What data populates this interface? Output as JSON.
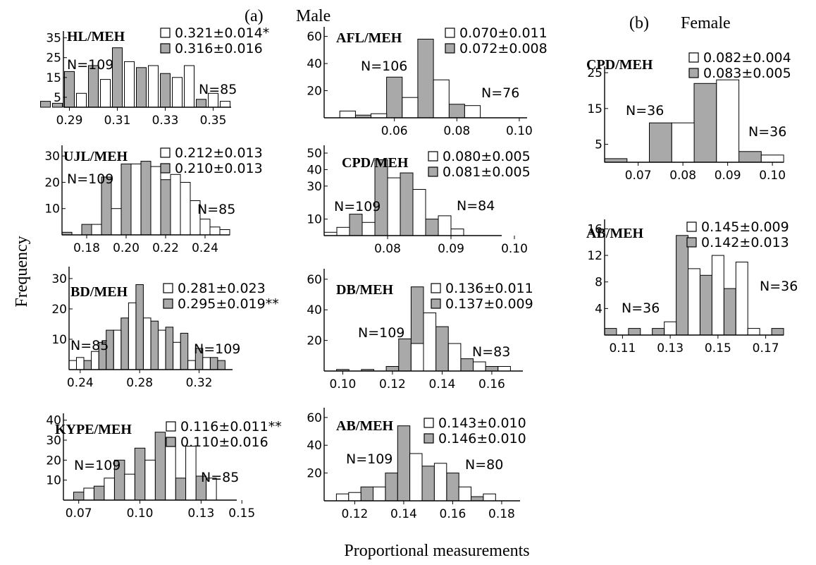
{
  "figure": {
    "header_a": "(a)",
    "header_male": "Male",
    "header_b": "(b)",
    "header_female": "Female",
    "ylabel": "Frequency",
    "xlabel": "Proportional measurements"
  },
  "colors": {
    "grey_bar": "#a9a9a9",
    "white_bar": "#ffffff",
    "edge": "#000000"
  },
  "chart_data": [
    {
      "type": "bar",
      "group": "Male",
      "title": "HL/MEH",
      "legend": [
        "0.321±0.014*",
        "0.316±0.016"
      ],
      "n_labels": [
        "N=109",
        "N=85"
      ],
      "xticks": [
        "0.29",
        "0.31",
        "0.33",
        "0.35"
      ],
      "yticks": [
        "5",
        "15",
        "25",
        "35"
      ],
      "x": [
        0.28,
        0.285,
        0.29,
        0.295,
        0.3,
        0.305,
        0.31,
        0.315,
        0.32,
        0.325,
        0.33,
        0.335,
        0.34,
        0.345,
        0.35,
        0.355,
        0.36
      ],
      "series": [
        {
          "name": "0.316±0.016",
          "fill": "grey",
          "values": [
            3,
            2,
            18,
            0,
            21,
            0,
            30,
            0,
            20,
            0,
            17,
            0,
            0,
            4,
            0,
            0,
            0
          ]
        },
        {
          "name": "0.321±0.014*",
          "fill": "white",
          "values": [
            0,
            0,
            0,
            7,
            0,
            14,
            0,
            23,
            0,
            21,
            0,
            15,
            21,
            0,
            7,
            3,
            0
          ]
        }
      ],
      "ylim": [
        0,
        37
      ]
    },
    {
      "type": "bar",
      "group": "Male",
      "title": "UJL/MEH",
      "legend": [
        "0.212±0.013",
        "0.210±0.013"
      ],
      "n_labels": [
        "N=109",
        "N=85"
      ],
      "xticks": [
        "0.18",
        "0.20",
        "0.22",
        "0.24"
      ],
      "yticks": [
        "10",
        "20",
        "30"
      ],
      "x": [
        0.17,
        0.175,
        0.18,
        0.185,
        0.19,
        0.195,
        0.2,
        0.205,
        0.21,
        0.215,
        0.22,
        0.225,
        0.23,
        0.235,
        0.24,
        0.245,
        0.25
      ],
      "series": [
        {
          "name": "0.210±0.013",
          "fill": "grey",
          "values": [
            1,
            0,
            4,
            0,
            22,
            0,
            27,
            0,
            28,
            0,
            21,
            0,
            0,
            0,
            0,
            0,
            0
          ]
        },
        {
          "name": "0.212±0.013",
          "fill": "white",
          "values": [
            0,
            0,
            0,
            4,
            0,
            10,
            0,
            27,
            0,
            26,
            0,
            23,
            20,
            13,
            6,
            3,
            2
          ]
        }
      ],
      "ylim": [
        0,
        33
      ]
    },
    {
      "type": "bar",
      "group": "Male",
      "title": "BD/MEH",
      "legend": [
        "0.281±0.023",
        "0.295±0.019**"
      ],
      "n_labels": [
        "N=85",
        "N=109"
      ],
      "xticks": [
        "0.24",
        "0.28",
        "0.32"
      ],
      "yticks": [
        "10",
        "20",
        "30"
      ],
      "x": [
        0.235,
        0.24,
        0.245,
        0.25,
        0.255,
        0.26,
        0.265,
        0.27,
        0.275,
        0.28,
        0.285,
        0.29,
        0.295,
        0.3,
        0.305,
        0.31,
        0.315,
        0.32,
        0.325,
        0.33,
        0.335,
        0.34
      ],
      "series": [
        {
          "name": "0.295±0.019**",
          "fill": "grey",
          "values": [
            0,
            0,
            3,
            0,
            9,
            13,
            0,
            17,
            0,
            28,
            0,
            16,
            0,
            14,
            0,
            12,
            0,
            7,
            0,
            4,
            3,
            0
          ]
        },
        {
          "name": "0.281±0.023",
          "fill": "white",
          "values": [
            3,
            4,
            0,
            6,
            0,
            0,
            13,
            0,
            22,
            0,
            17,
            0,
            13,
            0,
            9,
            0,
            3,
            0,
            4,
            0,
            0,
            0
          ]
        }
      ],
      "ylim": [
        0,
        33
      ]
    },
    {
      "type": "bar",
      "group": "Male",
      "title": "KYPE/MEH",
      "legend": [
        "0.116±0.011**",
        "0.110±0.016"
      ],
      "n_labels": [
        "N=109",
        "N=85"
      ],
      "xticks": [
        "0.07",
        "0.10",
        "0.13",
        "0.15"
      ],
      "yticks": [
        "10",
        "20",
        "30",
        "40"
      ],
      "x": [
        0.065,
        0.07,
        0.075,
        0.08,
        0.085,
        0.09,
        0.095,
        0.1,
        0.105,
        0.11,
        0.115,
        0.12,
        0.125,
        0.13,
        0.135,
        0.14,
        0.145
      ],
      "series": [
        {
          "name": "0.110±0.016",
          "fill": "grey",
          "values": [
            0,
            4,
            0,
            7,
            0,
            20,
            0,
            26,
            0,
            34,
            0,
            11,
            0,
            12,
            0,
            0,
            0
          ]
        },
        {
          "name": "0.116±0.011**",
          "fill": "white",
          "values": [
            0,
            0,
            6,
            0,
            11,
            0,
            13,
            0,
            20,
            0,
            31,
            0,
            27,
            0,
            11,
            0,
            0
          ]
        }
      ],
      "ylim": [
        0,
        42
      ]
    },
    {
      "type": "bar",
      "group": "Male",
      "title": "AFL/MEH",
      "legend": [
        "0.070±0.011",
        "0.072±0.008"
      ],
      "n_labels": [
        "N=106",
        "N=76"
      ],
      "xticks": [
        "0.06",
        "0.08",
        "0.10"
      ],
      "yticks": [
        "20",
        "40",
        "60"
      ],
      "x": [
        0.04,
        0.045,
        0.05,
        0.055,
        0.06,
        0.065,
        0.07,
        0.075,
        0.08,
        0.085,
        0.09,
        0.095,
        0.1
      ],
      "series": [
        {
          "name": "0.072±0.008",
          "fill": "grey",
          "values": [
            0,
            0,
            2,
            0,
            30,
            0,
            58,
            0,
            10,
            0,
            0,
            0,
            0
          ]
        },
        {
          "name": "0.070±0.011",
          "fill": "white",
          "values": [
            0,
            5,
            0,
            3,
            0,
            15,
            0,
            28,
            0,
            9,
            0,
            0,
            0
          ]
        }
      ],
      "ylim": [
        0,
        65
      ]
    },
    {
      "type": "bar",
      "group": "Male",
      "title": "CPD/MEH",
      "legend": [
        "0.080±0.005",
        "0.081±0.005"
      ],
      "n_labels": [
        "N=109",
        "N=84"
      ],
      "xticks": [
        "0.08",
        "0.09",
        "0.10"
      ],
      "yticks": [
        "10",
        "30",
        "40",
        "50"
      ],
      "x": [
        0.071,
        0.073,
        0.075,
        0.077,
        0.079,
        0.081,
        0.083,
        0.085,
        0.087,
        0.089,
        0.091,
        0.093,
        0.095,
        0.097
      ],
      "series": [
        {
          "name": "0.081±0.005",
          "fill": "grey",
          "values": [
            0,
            0,
            13,
            0,
            46,
            0,
            38,
            0,
            10,
            0,
            0,
            0,
            0,
            0
          ]
        },
        {
          "name": "0.080±0.005",
          "fill": "white",
          "values": [
            2,
            5,
            0,
            8,
            0,
            35,
            0,
            28,
            0,
            12,
            4,
            0,
            0,
            0
          ]
        }
      ],
      "ylim": [
        0,
        53
      ]
    },
    {
      "type": "bar",
      "group": "Male",
      "title": "DB/MEH",
      "legend": [
        "0.136±0.011",
        "0.137±0.009"
      ],
      "n_labels": [
        "N=109",
        "N=83"
      ],
      "xticks": [
        "0.10",
        "0.12",
        "0.14",
        "0.16"
      ],
      "yticks": [
        "20",
        "40",
        "60"
      ],
      "x": [
        0.095,
        0.1,
        0.105,
        0.11,
        0.115,
        0.12,
        0.125,
        0.13,
        0.135,
        0.14,
        0.145,
        0.15,
        0.155,
        0.16,
        0.165,
        0.17
      ],
      "series": [
        {
          "name": "0.137±0.009",
          "fill": "grey",
          "values": [
            0,
            1,
            0,
            1,
            0,
            3,
            21,
            55,
            0,
            29,
            0,
            8,
            0,
            3,
            0,
            0
          ]
        },
        {
          "name": "0.136±0.011",
          "fill": "white",
          "values": [
            0,
            0,
            0,
            0,
            0,
            0,
            0,
            18,
            38,
            0,
            18,
            0,
            6,
            0,
            3,
            0
          ]
        }
      ],
      "ylim": [
        0,
        65
      ]
    },
    {
      "type": "bar",
      "group": "Male",
      "title": "AB/MEH",
      "legend": [
        "0.143±0.010",
        "0.146±0.010"
      ],
      "n_labels": [
        "N=109",
        "N=80"
      ],
      "xticks": [
        "0.12",
        "0.14",
        "0.16",
        "0.18"
      ],
      "yticks": [
        "20",
        "40",
        "60"
      ],
      "x": [
        0.11,
        0.115,
        0.12,
        0.125,
        0.13,
        0.135,
        0.14,
        0.145,
        0.15,
        0.155,
        0.16,
        0.165,
        0.17,
        0.175,
        0.18,
        0.185
      ],
      "series": [
        {
          "name": "0.146±0.010",
          "fill": "grey",
          "values": [
            0,
            0,
            0,
            10,
            0,
            20,
            54,
            0,
            25,
            0,
            20,
            0,
            3,
            0,
            0,
            0
          ]
        },
        {
          "name": "0.143±0.010",
          "fill": "white",
          "values": [
            0,
            5,
            6,
            0,
            10,
            0,
            0,
            34,
            0,
            27,
            0,
            10,
            0,
            5,
            0,
            0
          ]
        }
      ],
      "ylim": [
        0,
        65
      ]
    },
    {
      "type": "bar",
      "group": "Female",
      "title": "CPD/MEH",
      "legend": [
        "0.082±0.004",
        "0.083±0.005"
      ],
      "n_labels": [
        "N=36",
        "N=36"
      ],
      "xticks": [
        "0.07",
        "0.08",
        "0.09",
        "0.10"
      ],
      "yticks": [
        "5",
        "15",
        "25"
      ],
      "x": [
        0.065,
        0.07,
        0.075,
        0.08,
        0.085,
        0.09,
        0.095,
        0.1
      ],
      "series": [
        {
          "name": "0.083±0.005",
          "fill": "grey",
          "values": [
            1,
            0,
            11,
            0,
            22,
            0,
            3,
            0
          ]
        },
        {
          "name": "0.082±0.004",
          "fill": "white",
          "values": [
            0,
            0,
            0,
            11,
            0,
            23,
            0,
            2
          ]
        }
      ],
      "ylim": [
        0,
        26
      ]
    },
    {
      "type": "bar",
      "group": "Female",
      "title": "AB/MEH",
      "legend": [
        "0.145±0.009",
        "0.142±0.013"
      ],
      "n_labels": [
        "N=36",
        "N=36"
      ],
      "xticks": [
        "0.11",
        "0.13",
        "0.15",
        "0.17"
      ],
      "yticks": [
        "4",
        "8",
        "12",
        "16"
      ],
      "x": [
        0.105,
        0.11,
        0.115,
        0.12,
        0.125,
        0.13,
        0.135,
        0.14,
        0.145,
        0.15,
        0.155,
        0.16,
        0.165,
        0.17,
        0.175
      ],
      "series": [
        {
          "name": "0.142±0.013",
          "fill": "grey",
          "values": [
            1,
            0,
            1,
            0,
            1,
            0,
            15,
            0,
            9,
            0,
            7,
            0,
            0,
            0,
            1
          ]
        },
        {
          "name": "0.145±0.009",
          "fill": "white",
          "values": [
            0,
            0,
            0,
            0,
            0,
            2,
            0,
            10,
            0,
            12,
            0,
            11,
            1,
            0,
            0
          ]
        }
      ],
      "ylim": [
        0,
        17
      ]
    }
  ]
}
